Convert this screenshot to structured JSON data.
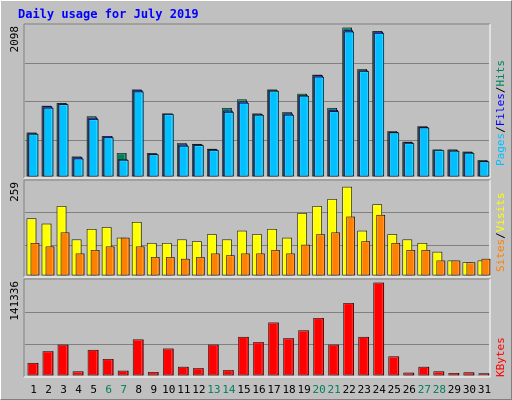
{
  "title": "Daily usage for July 2019",
  "colors": {
    "hits": "#00805c",
    "files": "#0000ff",
    "pages": "#00c0ff",
    "visits": "#ffff00",
    "sites": "#ff8000",
    "kbytes": "#ff0000",
    "weekend": "#00805c",
    "weekday": "#000000",
    "grid": "#808080"
  },
  "legend": {
    "top": [
      "Pages",
      "Files",
      "Hits"
    ],
    "middle": [
      "Sites",
      "Visits"
    ],
    "bottom": [
      "KBytes"
    ],
    "separator": "/"
  },
  "chart_data": {
    "type": "bar",
    "categories": [
      "1",
      "2",
      "3",
      "4",
      "5",
      "6",
      "7",
      "8",
      "9",
      "10",
      "11",
      "12",
      "13",
      "14",
      "15",
      "16",
      "17",
      "18",
      "19",
      "20",
      "21",
      "22",
      "23",
      "24",
      "25",
      "26",
      "27",
      "28",
      "29",
      "30",
      "31"
    ],
    "weekend_days": [
      "6",
      "7",
      "13",
      "14",
      "20",
      "21",
      "27",
      "28"
    ],
    "panels": [
      {
        "id": "top",
        "ymax": 2098,
        "ymax_label": "2098",
        "series": [
          {
            "name": "Hits",
            "values": [
              610,
              990,
              1030,
              270,
              840,
              560,
              320,
              1220,
              320,
              880,
              460,
              450,
              380,
              960,
              1080,
              880,
              1220,
              900,
              1160,
              1430,
              960,
              2098,
              1510,
              2050,
              630,
              480,
              700,
              370,
              370,
              340,
              220
            ]
          },
          {
            "name": "Files",
            "values": [
              600,
              980,
              1020,
              260,
              820,
              560,
              230,
              1210,
              310,
              880,
              440,
              440,
              370,
              920,
              1050,
              870,
              1210,
              880,
              1140,
              1420,
              930,
              2060,
              1490,
              2040,
              620,
              470,
              690,
              360,
              360,
              330,
              210
            ]
          },
          {
            "name": "Pages",
            "values": [
              590,
              960,
              1010,
              240,
              800,
              540,
              220,
              1190,
              300,
              870,
              420,
              430,
              360,
              900,
              1030,
              860,
              1200,
              860,
              1130,
              1400,
              910,
              2040,
              1480,
              2020,
              610,
              460,
              680,
              360,
              350,
              320,
              200
            ]
          }
        ]
      },
      {
        "id": "middle",
        "ymax": 259,
        "ymax_label": "259",
        "series": [
          {
            "name": "Visits",
            "values": [
              160,
              145,
              195,
              100,
              130,
              135,
              105,
              150,
              90,
              90,
              100,
              95,
              115,
              100,
              125,
              115,
              130,
              105,
              175,
              195,
              215,
              250,
              125,
              200,
              115,
              100,
              90,
              65,
              40,
              35,
              40
            ]
          },
          {
            "name": "Sites",
            "values": [
              90,
              80,
              120,
              60,
              70,
              80,
              105,
              80,
              50,
              50,
              45,
              50,
              60,
              55,
              60,
              60,
              70,
              60,
              85,
              115,
              120,
              165,
              95,
              170,
              90,
              70,
              70,
              40,
              40,
              35,
              45
            ]
          }
        ]
      },
      {
        "id": "bottom",
        "ymax": 141336,
        "ymax_label": "141336",
        "series": [
          {
            "name": "KBytes",
            "values": [
              18000,
              36000,
              46000,
              5000,
              38000,
              24000,
              6000,
              54000,
              4000,
              40000,
              12000,
              10000,
              46000,
              7000,
              58000,
              50000,
              80000,
              56000,
              68000,
              87000,
              46000,
              110000,
              58000,
              141336,
              28000,
              3000,
              12000,
              5000,
              2500,
              3500,
              2000
            ]
          }
        ]
      }
    ]
  }
}
